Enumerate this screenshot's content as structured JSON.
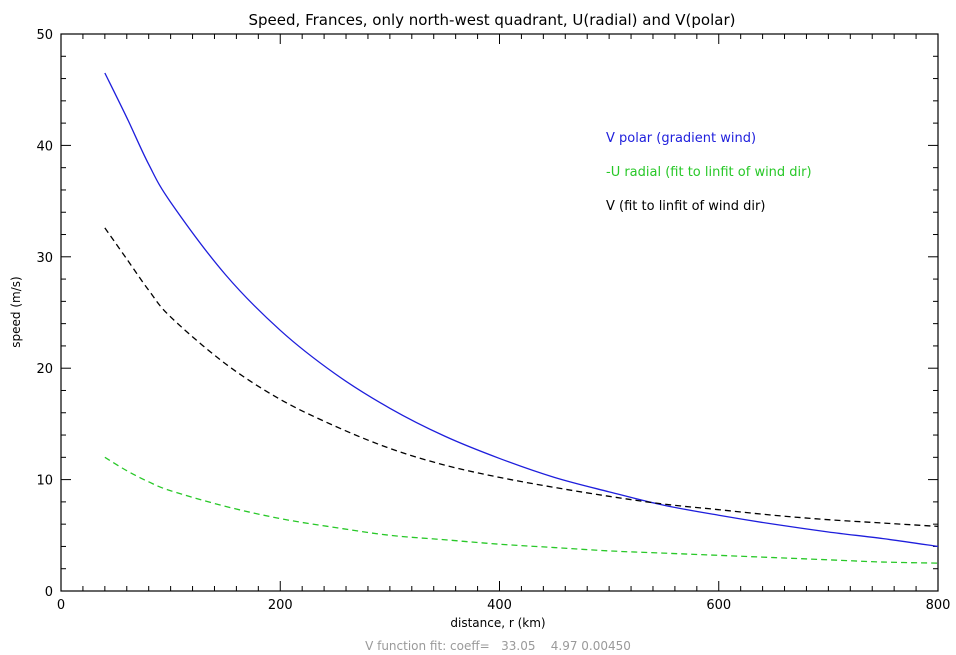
{
  "chart_data": {
    "type": "line",
    "title": "Speed, Frances, only north-west quadrant, U(radial) and V(polar)",
    "xlabel": "distance, r (km)",
    "ylabel": "speed (m/s)",
    "xlim": [
      0,
      800
    ],
    "ylim": [
      0,
      50
    ],
    "x_ticks": [
      0,
      200,
      400,
      600,
      800
    ],
    "y_ticks": [
      0,
      10,
      20,
      30,
      40,
      50
    ],
    "grid": false,
    "legend_placement": "top-right",
    "footer": "V function fit: coeff=   33.05    4.97 0.00450",
    "x": [
      40,
      60,
      80,
      100,
      150,
      200,
      250,
      300,
      350,
      400,
      450,
      500,
      550,
      600,
      650,
      700,
      750,
      800
    ],
    "series": [
      {
        "name": "V polar (gradient wind)",
        "color": "#1e1edc",
        "style": "solid",
        "values": [
          46.5,
          42.5,
          38.3,
          34.9,
          28.4,
          23.4,
          19.5,
          16.4,
          13.9,
          11.9,
          10.2,
          8.9,
          7.7,
          6.8,
          6.0,
          5.3,
          4.7,
          4.0
        ]
      },
      {
        "name": "-U radial (fit to linfit of wind dir)",
        "color": "#28c828",
        "style": "dashed",
        "values": [
          12.0,
          10.8,
          9.8,
          9.0,
          7.6,
          6.5,
          5.7,
          5.0,
          4.6,
          4.2,
          3.9,
          3.6,
          3.4,
          3.2,
          3.0,
          2.8,
          2.6,
          2.5
        ]
      },
      {
        "name": "V (fit to linfit of wind dir)",
        "color": "#000000",
        "style": "dashed",
        "values": [
          32.6,
          29.8,
          27.0,
          24.6,
          20.4,
          17.2,
          14.8,
          12.8,
          11.3,
          10.2,
          9.3,
          8.5,
          7.8,
          7.3,
          6.8,
          6.4,
          6.1,
          5.8
        ]
      }
    ]
  }
}
